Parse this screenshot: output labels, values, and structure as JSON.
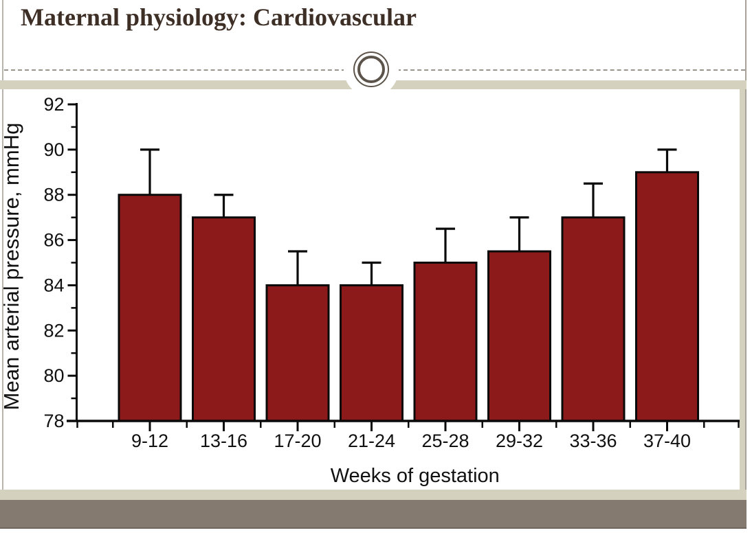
{
  "slide": {
    "title": "Maternal physiology: Cardiovascular"
  },
  "theme": {
    "slide-bg": "#ffffff",
    "title-color": "#3e2f26",
    "accent-band": "#d5d1bf",
    "footer-band": "#857a70",
    "footer-edge": "#6f655c",
    "dash-color": "#9b948a",
    "ring-color": "#5c534a",
    "border-left-color": "#b7b3ad",
    "border-right-color": "#a8a29a"
  },
  "chart_data": {
    "type": "bar",
    "title": "",
    "categories": [
      "9-12",
      "13-16",
      "17-20",
      "21-24",
      "25-28",
      "29-32",
      "33-36",
      "37-40"
    ],
    "values": [
      88,
      87,
      84,
      84,
      85,
      85.5,
      87,
      89
    ],
    "error_upper": [
      2,
      1,
      1.5,
      1,
      1.5,
      1.5,
      1.5,
      1
    ],
    "xlabel": "Weeks of gestation",
    "ylabel": "Mean arterial pressure, mmHg",
    "ylim": [
      78,
      92
    ],
    "ytick_major_step": 2,
    "ytick_minor_step": 1,
    "bar_color": "#8d1a1a",
    "bar_edge_color": "#0a0a0a",
    "axis_color": "#0a0a0a",
    "label_color": "#111111",
    "grid": false,
    "legend": null
  }
}
